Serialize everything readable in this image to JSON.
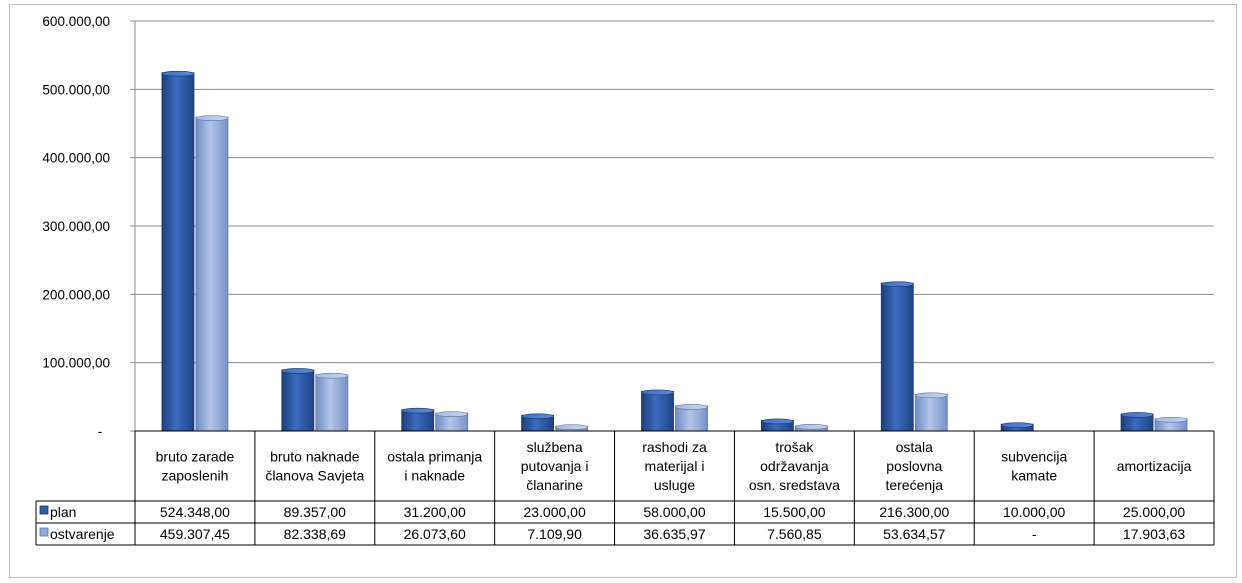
{
  "chart_data": {
    "type": "bar",
    "title": "",
    "xlabel": "",
    "ylabel": "",
    "ylim": [
      0,
      600000
    ],
    "y_ticks": [
      "-",
      "100.000,00",
      "200.000,00",
      "300.000,00",
      "400.000,00",
      "500.000,00",
      "600.000,00"
    ],
    "y_tick_values": [
      0,
      100000,
      200000,
      300000,
      400000,
      500000,
      600000
    ],
    "grid": "horizontal",
    "legend": "data-table",
    "categories": [
      [
        "bruto zarade",
        "zaposlenih"
      ],
      [
        "bruto naknade",
        "članova Savjeta"
      ],
      [
        "ostala primanja",
        "i naknade"
      ],
      [
        "službena",
        "putovanja i",
        "članarine"
      ],
      [
        "rashodi za",
        "materijal i",
        "usluge"
      ],
      [
        "trošak",
        "održavanja",
        "osn. sredstava"
      ],
      [
        "ostala",
        "poslovna",
        "terećenja"
      ],
      [
        "subvencija",
        "kamate"
      ],
      [
        "amortizacija"
      ]
    ],
    "series": [
      {
        "name": "plan",
        "color": "#2f5ea8",
        "values": [
          524348.0,
          89357.0,
          31200.0,
          23000.0,
          58000.0,
          15500.0,
          216300.0,
          10000.0,
          25000.0
        ],
        "labels": [
          "524.348,00",
          "89.357,00",
          "31.200,00",
          "23.000,00",
          "58.000,00",
          "15.500,00",
          "216.300,00",
          "10.000,00",
          "25.000,00"
        ]
      },
      {
        "name": "ostvarenje",
        "color": "#8fa8d8",
        "values": [
          459307.45,
          82338.69,
          26073.6,
          7109.9,
          36635.97,
          7560.85,
          53634.57,
          0,
          17903.63
        ],
        "labels": [
          "459.307,45",
          "82.338,69",
          "26.073,60",
          "7.109,90",
          "36.635,97",
          "7.560,85",
          "53.634,57",
          "-",
          "17.903,63"
        ]
      }
    ]
  }
}
